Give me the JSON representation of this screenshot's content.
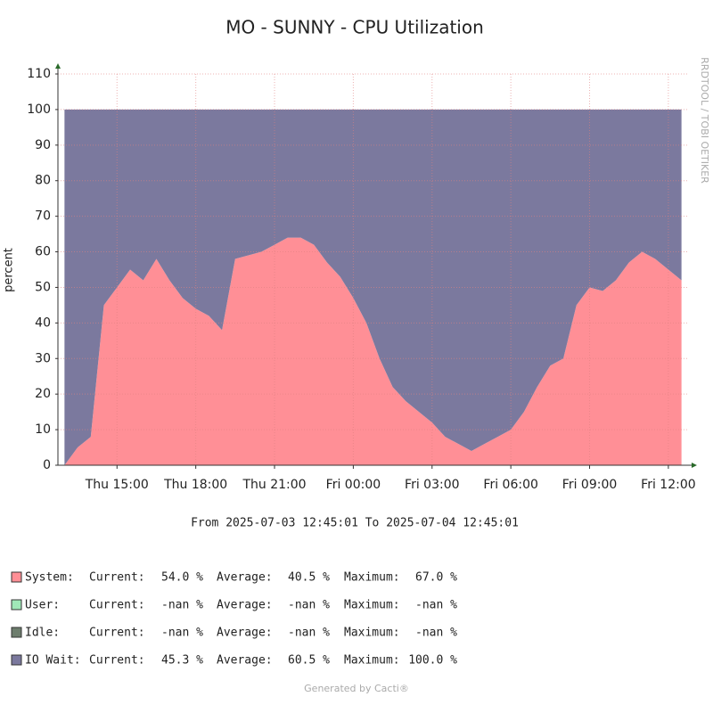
{
  "chart_data": {
    "type": "stacked_area",
    "title": "MO - SUNNY - CPU Utilization",
    "y_label": "percent",
    "range_text": "From 2025-07-03 12:45:01 To 2025-07-04 12:45:01",
    "side_text": "RRDTOOL / TOBI OETIKER",
    "footer": "Generated by Cacti®",
    "xlim": [
      "2025-07-03 12:45",
      "2025-07-04 12:45"
    ],
    "xticks": [
      {
        "value": "2025-07-03 15:00",
        "label": "Thu 15:00"
      },
      {
        "value": "2025-07-03 18:00",
        "label": "Thu 18:00"
      },
      {
        "value": "2025-07-03 21:00",
        "label": "Thu 21:00"
      },
      {
        "value": "2025-07-04 00:00",
        "label": "Fri 00:00"
      },
      {
        "value": "2025-07-04 03:00",
        "label": "Fri 03:00"
      },
      {
        "value": "2025-07-04 06:00",
        "label": "Fri 06:00"
      },
      {
        "value": "2025-07-04 09:00",
        "label": "Fri 09:00"
      },
      {
        "value": "2025-07-04 12:00",
        "label": "Fri 12:00"
      }
    ],
    "ylim": [
      0,
      110
    ],
    "yticks": [
      0,
      10,
      20,
      30,
      40,
      50,
      60,
      70,
      80,
      90,
      100,
      110
    ],
    "grid": true,
    "x": [
      "2025-07-03 13:00",
      "2025-07-03 13:30",
      "2025-07-03 14:00",
      "2025-07-03 14:30",
      "2025-07-03 15:00",
      "2025-07-03 15:30",
      "2025-07-03 16:00",
      "2025-07-03 16:30",
      "2025-07-03 17:00",
      "2025-07-03 17:30",
      "2025-07-03 18:00",
      "2025-07-03 18:30",
      "2025-07-03 19:00",
      "2025-07-03 19:30",
      "2025-07-03 20:00",
      "2025-07-03 20:30",
      "2025-07-03 21:00",
      "2025-07-03 21:30",
      "2025-07-03 22:00",
      "2025-07-03 22:30",
      "2025-07-03 23:00",
      "2025-07-03 23:30",
      "2025-07-04 00:00",
      "2025-07-04 00:30",
      "2025-07-04 01:00",
      "2025-07-04 01:30",
      "2025-07-04 02:00",
      "2025-07-04 02:30",
      "2025-07-04 03:00",
      "2025-07-04 03:30",
      "2025-07-04 04:00",
      "2025-07-04 04:30",
      "2025-07-04 05:00",
      "2025-07-04 05:30",
      "2025-07-04 06:00",
      "2025-07-04 06:30",
      "2025-07-04 07:00",
      "2025-07-04 07:30",
      "2025-07-04 08:00",
      "2025-07-04 08:30",
      "2025-07-04 09:00",
      "2025-07-04 09:30",
      "2025-07-04 10:00",
      "2025-07-04 10:30",
      "2025-07-04 11:00",
      "2025-07-04 11:30",
      "2025-07-04 12:00",
      "2025-07-04 12:30"
    ],
    "stat_labels": [
      "Current:",
      "Average:",
      "Maximum:"
    ],
    "series": [
      {
        "name": "System:",
        "color": "#ff8f96",
        "stats": [
          "54.0 %",
          "40.5 %",
          "67.0 %"
        ],
        "values": [
          0,
          5,
          8,
          45,
          50,
          55,
          52,
          58,
          52,
          47,
          44,
          42,
          38,
          58,
          59,
          60,
          62,
          64,
          64,
          62,
          57,
          53,
          47,
          40,
          30,
          22,
          18,
          15,
          12,
          8,
          6,
          4,
          6,
          8,
          10,
          15,
          22,
          28,
          30,
          45,
          50,
          49,
          52,
          57,
          60,
          58,
          55,
          52
        ]
      },
      {
        "name": "User:",
        "color": "#a0e8b8",
        "stats": [
          "-nan %",
          "-nan %",
          "-nan %"
        ]
      },
      {
        "name": "Idle:",
        "color": "#6d7d6d",
        "stats": [
          "-nan %",
          "-nan %",
          "-nan %"
        ]
      },
      {
        "name": "IO Wait:",
        "color": "#7b799e",
        "stats": [
          "45.3 %",
          "60.5 %",
          "100.0 %"
        ],
        "values": [
          100,
          95,
          92,
          55,
          50,
          45,
          48,
          42,
          48,
          53,
          56,
          58,
          62,
          42,
          41,
          40,
          38,
          36,
          36,
          38,
          43,
          47,
          53,
          60,
          70,
          78,
          82,
          85,
          88,
          92,
          94,
          96,
          94,
          92,
          90,
          85,
          78,
          72,
          70,
          55,
          50,
          51,
          48,
          43,
          40,
          42,
          45,
          48
        ]
      }
    ]
  }
}
